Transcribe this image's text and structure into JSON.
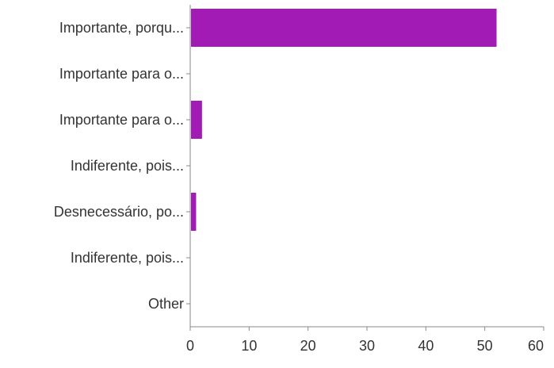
{
  "chart_data": {
    "type": "bar",
    "orientation": "horizontal",
    "categories": [
      "Importante, porqu...",
      "Importante para o...",
      "Importante para o...",
      "Indiferente, pois...",
      "Desnecessário, po...",
      "Indiferente, pois...",
      "Other"
    ],
    "values": [
      52,
      0,
      2,
      0,
      1,
      0,
      0
    ],
    "xlim": [
      0,
      60
    ],
    "xticks": [
      "0",
      "10",
      "20",
      "30",
      "40",
      "50",
      "60"
    ],
    "title": "",
    "xlabel": "",
    "ylabel": "",
    "grid": false,
    "bar_color": "#A21BB5"
  }
}
